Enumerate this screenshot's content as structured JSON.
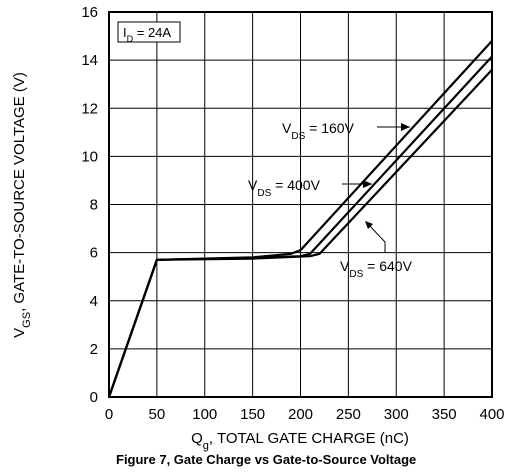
{
  "chart_data": {
    "type": "line",
    "title": "Figure 7, Gate Charge vs Gate-to-Source Voltage",
    "xlabel": {
      "main": "Q",
      "sub": "g",
      "rest": ", TOTAL GATE CHARGE (nC)"
    },
    "ylabel": {
      "main": "V",
      "sub": "GS",
      "rest": ", GATE-TO-SOURCE  VOLTAGE (V)"
    },
    "xlim": [
      0,
      400
    ],
    "ylim": [
      0,
      16
    ],
    "xticks": [
      "0",
      "50",
      "100",
      "150",
      "200",
      "250",
      "300",
      "350",
      "400"
    ],
    "yticks": [
      "0",
      "2",
      "4",
      "6",
      "8",
      "10",
      "12",
      "14",
      "16"
    ],
    "grid": true,
    "condition": {
      "main": "I",
      "sub": "D",
      "rest": " = 24A"
    },
    "series": [
      {
        "name": "V_DS = 160V",
        "label": {
          "main": "V",
          "sub": "DS",
          "rest": " = 160V"
        },
        "x": [
          0,
          50,
          150,
          190,
          200,
          400
        ],
        "y": [
          0,
          5.7,
          5.8,
          5.95,
          6.1,
          14.8
        ]
      },
      {
        "name": "V_DS = 400V",
        "label": {
          "main": "V",
          "sub": "DS",
          "rest": " = 400V"
        },
        "x": [
          0,
          50,
          150,
          200,
          210,
          400
        ],
        "y": [
          0,
          5.7,
          5.78,
          5.85,
          5.95,
          14.15
        ]
      },
      {
        "name": "V_DS = 640V",
        "label": {
          "main": "V",
          "sub": "DS",
          "rest": " = 640V"
        },
        "x": [
          0,
          50,
          150,
          210,
          220,
          400
        ],
        "y": [
          0,
          5.7,
          5.75,
          5.85,
          5.95,
          13.6
        ]
      }
    ]
  }
}
